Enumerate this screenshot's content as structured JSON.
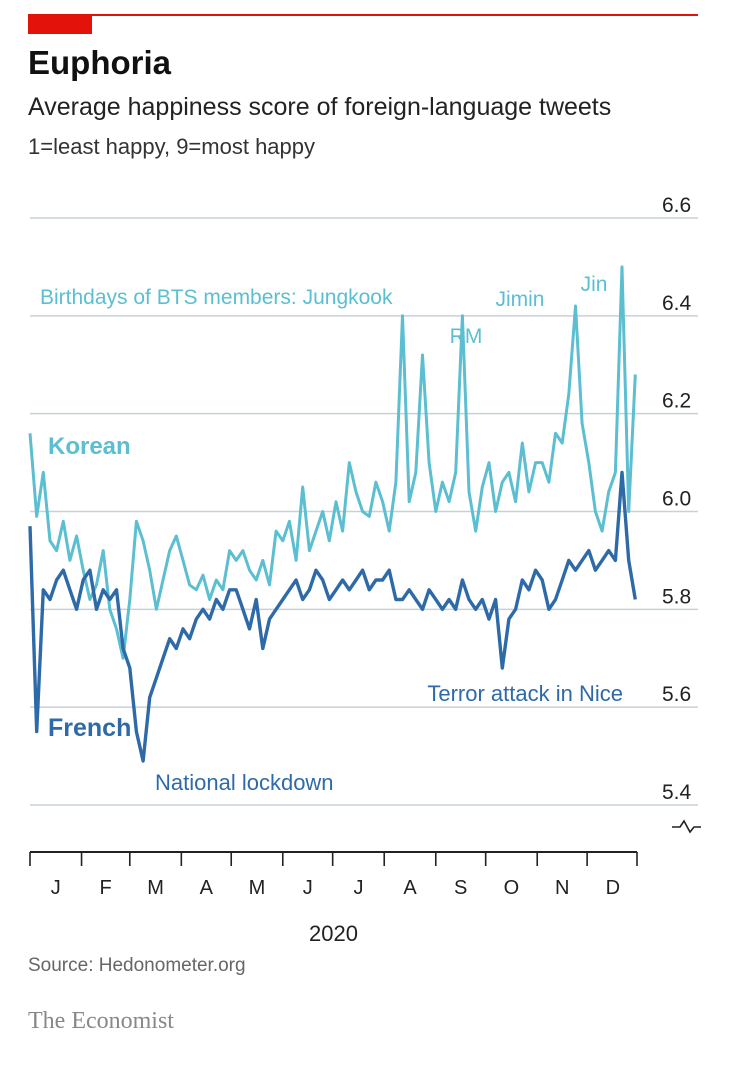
{
  "header": {
    "title": "Euphoria",
    "subtitle": "Average happiness score of foreign-language tweets",
    "units": "1=least happy, 9=most happy"
  },
  "footer": {
    "source": "Source: Hedonometer.org",
    "brand": "The Economist"
  },
  "colors": {
    "accent": "#e3120b",
    "korean": "#5bbfd1",
    "french": "#2f6aa8",
    "grid": "#c7d1d8",
    "tick_text": "#222222"
  },
  "chart_data": {
    "type": "line",
    "title": "Euphoria",
    "subtitle": "Average happiness score of foreign-language tweets",
    "ylabel": "1=least happy, 9=most happy",
    "xlabel": "2020",
    "ylim": [
      5.4,
      6.6
    ],
    "yticks": [
      5.4,
      5.6,
      5.8,
      6.0,
      6.2,
      6.4,
      6.6
    ],
    "ytick_labels": [
      "5.4",
      "5.6",
      "5.8",
      "6.0",
      "6.2",
      "6.4",
      "6.6"
    ],
    "y_axis_broken": true,
    "grid": true,
    "xlim": [
      "2020-01-01",
      "2020-12-31"
    ],
    "months": [
      "J",
      "F",
      "M",
      "A",
      "M",
      "J",
      "J",
      "A",
      "S",
      "O",
      "N",
      "D"
    ],
    "year_label": "2020",
    "series": [
      {
        "name": "Korean",
        "color": "#5bbfd1",
        "x": [
          "2020-01-01",
          "2020-01-05",
          "2020-01-09",
          "2020-01-13",
          "2020-01-17",
          "2020-01-21",
          "2020-01-25",
          "2020-01-29",
          "2020-02-02",
          "2020-02-06",
          "2020-02-10",
          "2020-02-14",
          "2020-02-18",
          "2020-02-22",
          "2020-02-26",
          "2020-03-01",
          "2020-03-05",
          "2020-03-09",
          "2020-03-13",
          "2020-03-17",
          "2020-03-21",
          "2020-03-25",
          "2020-03-29",
          "2020-04-02",
          "2020-04-06",
          "2020-04-10",
          "2020-04-14",
          "2020-04-18",
          "2020-04-22",
          "2020-04-26",
          "2020-04-30",
          "2020-05-04",
          "2020-05-08",
          "2020-05-12",
          "2020-05-16",
          "2020-05-20",
          "2020-05-24",
          "2020-05-28",
          "2020-06-01",
          "2020-06-05",
          "2020-06-09",
          "2020-06-13",
          "2020-06-17",
          "2020-06-21",
          "2020-06-25",
          "2020-06-29",
          "2020-07-03",
          "2020-07-07",
          "2020-07-11",
          "2020-07-15",
          "2020-07-19",
          "2020-07-23",
          "2020-07-27",
          "2020-07-31",
          "2020-08-04",
          "2020-08-08",
          "2020-08-12",
          "2020-08-16",
          "2020-08-20",
          "2020-08-24",
          "2020-08-28",
          "2020-09-01",
          "2020-09-05",
          "2020-09-09",
          "2020-09-13",
          "2020-09-17",
          "2020-09-21",
          "2020-09-25",
          "2020-09-29",
          "2020-10-03",
          "2020-10-07",
          "2020-10-11",
          "2020-10-15",
          "2020-10-19",
          "2020-10-23",
          "2020-10-27",
          "2020-10-31",
          "2020-11-04",
          "2020-11-08",
          "2020-11-12",
          "2020-11-16",
          "2020-11-20",
          "2020-11-24",
          "2020-11-28",
          "2020-12-02",
          "2020-12-06",
          "2020-12-10",
          "2020-12-14",
          "2020-12-18",
          "2020-12-22",
          "2020-12-26",
          "2020-12-30"
        ],
        "values": [
          6.16,
          5.99,
          6.08,
          5.94,
          5.92,
          5.98,
          5.9,
          5.95,
          5.88,
          5.82,
          5.85,
          5.92,
          5.8,
          5.76,
          5.7,
          5.82,
          5.98,
          5.94,
          5.88,
          5.8,
          5.86,
          5.92,
          5.95,
          5.9,
          5.85,
          5.84,
          5.87,
          5.82,
          5.86,
          5.84,
          5.92,
          5.9,
          5.92,
          5.88,
          5.86,
          5.9,
          5.85,
          5.96,
          5.94,
          5.98,
          5.9,
          6.05,
          5.92,
          5.96,
          6.0,
          5.94,
          6.02,
          5.96,
          6.1,
          6.04,
          6.0,
          5.99,
          6.06,
          6.02,
          5.96,
          6.06,
          6.4,
          6.02,
          6.08,
          6.32,
          6.1,
          6.0,
          6.06,
          6.02,
          6.08,
          6.4,
          6.04,
          5.96,
          6.05,
          6.1,
          6.0,
          6.06,
          6.08,
          6.02,
          6.14,
          6.04,
          6.1,
          6.1,
          6.06,
          6.16,
          6.14,
          6.24,
          6.42,
          6.18,
          6.1,
          6.0,
          5.96,
          6.04,
          6.08,
          6.5,
          6.0,
          6.28
        ]
      },
      {
        "name": "French",
        "color": "#2f6aa8",
        "x": [
          "2020-01-01",
          "2020-01-05",
          "2020-01-09",
          "2020-01-13",
          "2020-01-17",
          "2020-01-21",
          "2020-01-25",
          "2020-01-29",
          "2020-02-02",
          "2020-02-06",
          "2020-02-10",
          "2020-02-14",
          "2020-02-18",
          "2020-02-22",
          "2020-02-26",
          "2020-03-01",
          "2020-03-05",
          "2020-03-09",
          "2020-03-13",
          "2020-03-17",
          "2020-03-21",
          "2020-03-25",
          "2020-03-29",
          "2020-04-02",
          "2020-04-06",
          "2020-04-10",
          "2020-04-14",
          "2020-04-18",
          "2020-04-22",
          "2020-04-26",
          "2020-04-30",
          "2020-05-04",
          "2020-05-08",
          "2020-05-12",
          "2020-05-16",
          "2020-05-20",
          "2020-05-24",
          "2020-05-28",
          "2020-06-01",
          "2020-06-05",
          "2020-06-09",
          "2020-06-13",
          "2020-06-17",
          "2020-06-21",
          "2020-06-25",
          "2020-06-29",
          "2020-07-03",
          "2020-07-07",
          "2020-07-11",
          "2020-07-15",
          "2020-07-19",
          "2020-07-23",
          "2020-07-27",
          "2020-07-31",
          "2020-08-04",
          "2020-08-08",
          "2020-08-12",
          "2020-08-16",
          "2020-08-20",
          "2020-08-24",
          "2020-08-28",
          "2020-09-01",
          "2020-09-05",
          "2020-09-09",
          "2020-09-13",
          "2020-09-17",
          "2020-09-21",
          "2020-09-25",
          "2020-09-29",
          "2020-10-03",
          "2020-10-07",
          "2020-10-11",
          "2020-10-15",
          "2020-10-19",
          "2020-10-23",
          "2020-10-27",
          "2020-10-31",
          "2020-11-04",
          "2020-11-08",
          "2020-11-12",
          "2020-11-16",
          "2020-11-20",
          "2020-11-24",
          "2020-11-28",
          "2020-12-02",
          "2020-12-06",
          "2020-12-10",
          "2020-12-14",
          "2020-12-18",
          "2020-12-22",
          "2020-12-26",
          "2020-12-30"
        ],
        "values": [
          5.97,
          5.55,
          5.84,
          5.82,
          5.86,
          5.88,
          5.84,
          5.8,
          5.86,
          5.88,
          5.8,
          5.84,
          5.82,
          5.84,
          5.72,
          5.68,
          5.55,
          5.49,
          5.62,
          5.66,
          5.7,
          5.74,
          5.72,
          5.76,
          5.74,
          5.78,
          5.8,
          5.78,
          5.82,
          5.8,
          5.84,
          5.84,
          5.8,
          5.76,
          5.82,
          5.72,
          5.78,
          5.8,
          5.82,
          5.84,
          5.86,
          5.82,
          5.84,
          5.88,
          5.86,
          5.82,
          5.84,
          5.86,
          5.84,
          5.86,
          5.88,
          5.84,
          5.86,
          5.86,
          5.88,
          5.82,
          5.82,
          5.84,
          5.82,
          5.8,
          5.84,
          5.82,
          5.8,
          5.82,
          5.8,
          5.86,
          5.82,
          5.8,
          5.82,
          5.78,
          5.82,
          5.68,
          5.78,
          5.8,
          5.86,
          5.84,
          5.88,
          5.86,
          5.8,
          5.82,
          5.86,
          5.9,
          5.88,
          5.9,
          5.92,
          5.88,
          5.9,
          5.92,
          5.9,
          6.08,
          5.9,
          5.82
        ]
      }
    ],
    "annotations": [
      {
        "text": "Birthdays of BTS members: Jungkook",
        "x": "2020-09-01",
        "y": 6.4,
        "color": "#5bbfd1"
      },
      {
        "text": "RM",
        "x": "2020-09-12",
        "y": 6.32,
        "color": "#5bbfd1"
      },
      {
        "text": "Jimin",
        "x": "2020-10-13",
        "y": 6.4,
        "color": "#5bbfd1"
      },
      {
        "text": "Jin",
        "x": "2020-12-04",
        "y": 6.43,
        "color": "#5bbfd1"
      },
      {
        "text": "Korean",
        "color": "#5bbfd1"
      },
      {
        "text": "French",
        "color": "#2f6aa8"
      },
      {
        "text": "National lockdown",
        "x": "2020-03-17",
        "y": 5.49,
        "color": "#2f6aa8"
      },
      {
        "text": "Terror attack in Nice",
        "x": "2020-10-29",
        "y": 5.68,
        "color": "#2f6aa8"
      }
    ]
  }
}
